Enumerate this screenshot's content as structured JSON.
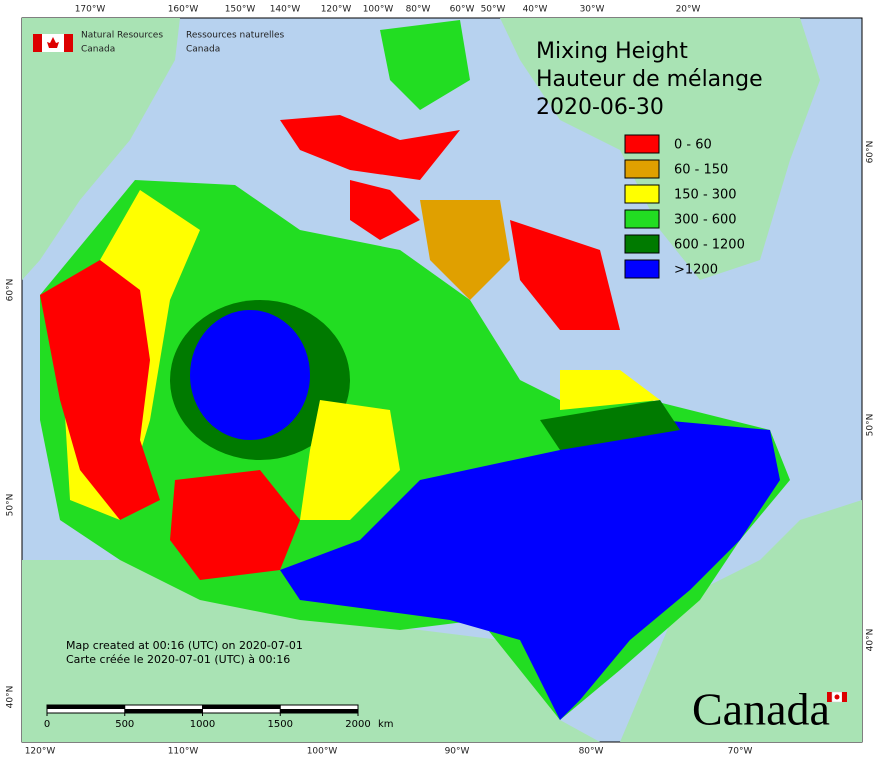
{
  "header": {
    "agency_en": [
      "Natural Resources",
      "Canada"
    ],
    "agency_fr": [
      "Ressources naturelles",
      "Canada"
    ]
  },
  "title": [
    "Mixing Height",
    "Hauteur de mélange",
    "2020-06-30"
  ],
  "legend": [
    {
      "label": "0 - 60",
      "color": "#ff0000"
    },
    {
      "label": "60 - 150",
      "color": "#e0a000"
    },
    {
      "label": "150 - 300",
      "color": "#ffff00"
    },
    {
      "label": "300 - 600",
      "color": "#22dd22"
    },
    {
      "label": "600 - 1200",
      "color": "#007a00"
    },
    {
      "label": ">1200",
      "color": "#0000ff"
    }
  ],
  "graticule": {
    "top": [
      "170°W",
      "160°W",
      "150°W",
      "140°W",
      "120°W",
      "100°W",
      "80°W",
      "60°W",
      "50°W",
      "40°W",
      "30°W",
      "20°W"
    ],
    "bottom": [
      "120°W",
      "110°W",
      "100°W",
      "90°W",
      "80°W",
      "70°W"
    ],
    "left": [
      "60°N",
      "50°N",
      "40°N"
    ],
    "right": [
      "60°N",
      "50°N",
      "40°N"
    ]
  },
  "credits": [
    "Map created at 00:16 (UTC) on 2020-07-01",
    "Carte créée le 2020-07-01 (UTC) à 00:16"
  ],
  "scale": {
    "ticks": [
      0,
      500,
      1000,
      1500,
      2000
    ],
    "unit": "km"
  },
  "wordmark": "Canada"
}
